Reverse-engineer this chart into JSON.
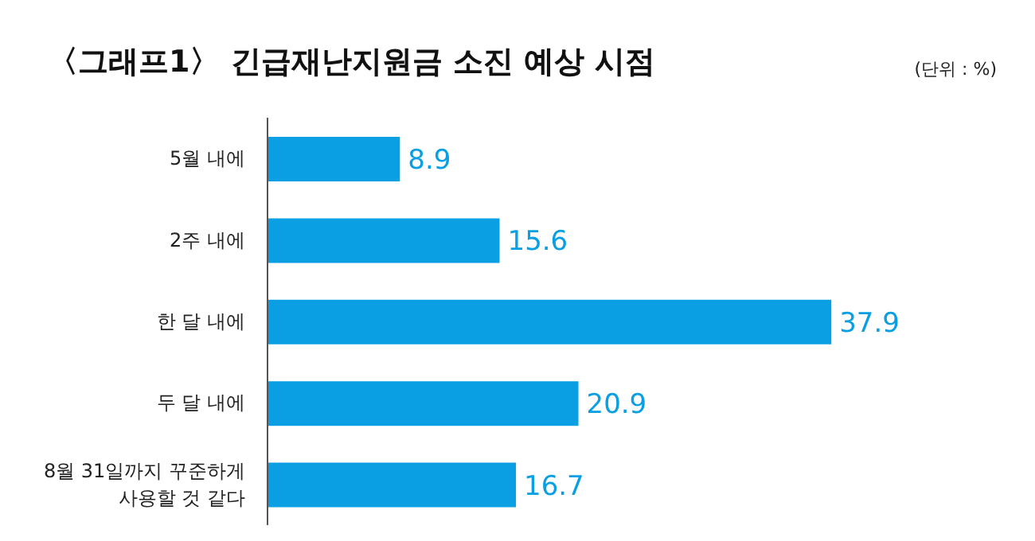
{
  "chart_data": {
    "type": "bar",
    "orientation": "horizontal",
    "title": "〈그래프1〉 긴급재난지원금 소진 예상 시점",
    "annotations": [
      "(단위 : %)"
    ],
    "categories": [
      "5월 내에",
      "2주 내에",
      "한 달 내에",
      "두 달 내에",
      "8월 31일까지 꾸준하게 사용할 것 같다"
    ],
    "values": [
      8.9,
      15.6,
      37.9,
      20.9,
      16.7
    ],
    "color": "#0a9ee3",
    "data_labels": true
  }
}
